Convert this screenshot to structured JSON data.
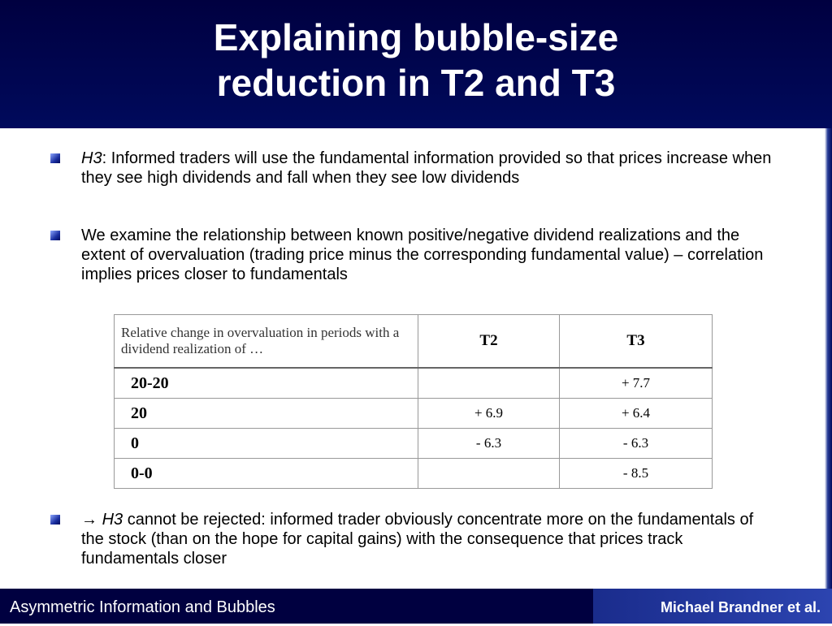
{
  "header": {
    "title_lines": [
      "Explaining bubble-size",
      "reduction in T2 and T3"
    ]
  },
  "bullets": [
    {
      "label": "H3",
      "text": ": Informed traders will use the fundamental information provided so that prices increase when they see high dividends and fall when they see low dividends"
    },
    {
      "text": "We examine the relationship between known positive/negative dividend realizations and the extent of overvaluation (trading price minus the corresponding fundamental value) – correlation implies prices closer to fundamentals"
    },
    {
      "arrow": "→",
      "label": "H3",
      "text": " cannot be rejected: informed trader obviously concentrate more on the fundamentals of the stock (than on the hope for capital gains) with the consequence that prices track fundamentals closer"
    }
  ],
  "table": {
    "header": [
      "Relative change in overvaluation in periods with a dividend realization of …",
      "T2",
      "T3"
    ],
    "rows": [
      [
        "20-20",
        null,
        "+ 7.7"
      ],
      [
        "20",
        "+ 6.9",
        "+ 6.4"
      ],
      [
        "0",
        "- 6.3",
        "- 6.3"
      ],
      [
        "0-0",
        null,
        "- 8.5"
      ]
    ]
  },
  "footer": {
    "left": "Asymmetric Information and Bubbles",
    "right": "Michael Brandner et al."
  }
}
